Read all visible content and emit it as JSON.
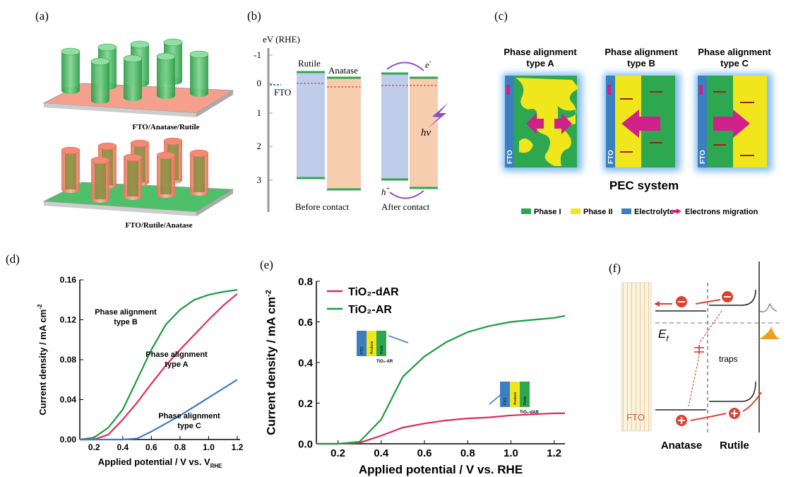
{
  "panel_labels": [
    "(a)",
    "(b)",
    "(c)",
    "(d)",
    "(e)",
    "(f)"
  ],
  "a": {
    "labels": [
      "FTO/Anatase/Rutile",
      "FTO/Rutile/Anatase"
    ]
  },
  "b": {
    "axis_title": "eV (RHE)",
    "ticks": [
      "-1",
      "0",
      "1",
      "2",
      "3"
    ],
    "fto": "FTO",
    "rutile": "Rutile",
    "anatase": "Anatase",
    "before": "Before contact",
    "after": "After contact",
    "electron": "e",
    "electron_sup": "-",
    "photon": "hv",
    "hole": "h",
    "hole_sup": "+"
  },
  "c": {
    "types": [
      [
        "Phase alignment",
        "type A"
      ],
      [
        "Phase alignment",
        "type B"
      ],
      [
        "Phase alignment",
        "type C"
      ]
    ],
    "fto": "FTO",
    "system": "PEC system",
    "legend": [
      "Phase I",
      "Phase II",
      "Electrolyte",
      "Electrons migration"
    ]
  },
  "f": {
    "fto": "FTO",
    "anatase": "Anatase",
    "rutile": "Rutile",
    "fermi": "E",
    "fermi_sub": "f",
    "traps": "traps"
  },
  "chart_data": [
    {
      "type": "line",
      "ylabel": "Current density / mA cm",
      "ylabel_sup": "-2",
      "xlabel": "Applied potential / V vs. V",
      "xlabel_sub": "RHE",
      "xlim": [
        0.1,
        1.22
      ],
      "xticks": [
        0.2,
        0.4,
        0.6,
        0.8,
        {
          "value": 1,
          "label": "1.0"
        },
        1.2
      ],
      "ylim": [
        0,
        0.16
      ],
      "yticks": [
        {
          "value": 0,
          "label": "0.00"
        },
        0.04,
        0.08,
        0.12,
        0.16
      ],
      "x": [
        0.1,
        0.2,
        0.3,
        0.4,
        0.5,
        0.6,
        0.7,
        0.8,
        0.9,
        1.0,
        1.1,
        1.2
      ],
      "series": [
        {
          "annotation": [
            "Phase alignment",
            "type B"
          ],
          "color": "#1e9a42",
          "values": [
            0,
            0.002,
            0.012,
            0.03,
            0.06,
            0.09,
            0.115,
            0.13,
            0.14,
            0.145,
            0.148,
            0.15
          ]
        },
        {
          "annotation": [
            "Phase alignment",
            "type A"
          ],
          "color": "#e02a5c",
          "values": [
            0,
            0,
            0.005,
            0.02,
            0.037,
            0.056,
            0.074,
            0.09,
            0.105,
            0.12,
            0.134,
            0.146
          ]
        },
        {
          "annotation": [
            "Phase alignment",
            "type C"
          ],
          "color": "#3a78c8",
          "values": [
            0,
            0,
            0,
            0,
            0.001,
            0.008,
            0.016,
            0.024,
            0.033,
            0.042,
            0.051,
            0.06
          ]
        }
      ]
    },
    {
      "type": "line",
      "ylabel": "Current density / mA cm",
      "ylabel_sup": "-2",
      "xlabel": "Applied potential / V vs. RHE",
      "xlim": [
        0.1,
        1.25
      ],
      "xticks": [
        0.2,
        0.4,
        0.6,
        0.8,
        {
          "value": 1,
          "label": "1.0"
        },
        1.2
      ],
      "ylim": [
        0,
        0.8
      ],
      "yticks": [
        {
          "value": 0,
          "label": "0.0"
        },
        0.2,
        0.4,
        0.6,
        0.8
      ],
      "x": [
        0.1,
        0.2,
        0.3,
        0.4,
        0.5,
        0.6,
        0.7,
        0.8,
        0.9,
        1.0,
        1.1,
        1.2,
        1.25
      ],
      "legend": "upper left",
      "series": [
        {
          "name": "TiO₂-dAR",
          "color": "#e02a5c",
          "values": [
            0,
            0,
            0.005,
            0.04,
            0.08,
            0.1,
            0.115,
            0.125,
            0.13,
            0.14,
            0.145,
            0.15,
            0.15
          ]
        },
        {
          "name": "TiO₂-AR",
          "color": "#1e9a42",
          "values": [
            0,
            0,
            0.01,
            0.12,
            0.33,
            0.43,
            0.5,
            0.55,
            0.58,
            0.6,
            0.61,
            0.62,
            0.63
          ]
        }
      ],
      "insets": [
        {
          "layers": [
            "FTO",
            "Anatase",
            "Rutile"
          ],
          "caption": "TiO₂-AR"
        },
        {
          "layers": [
            "FTO",
            "Anatase",
            "Rutile"
          ],
          "caption": "TiO₂-dAR"
        }
      ]
    }
  ]
}
